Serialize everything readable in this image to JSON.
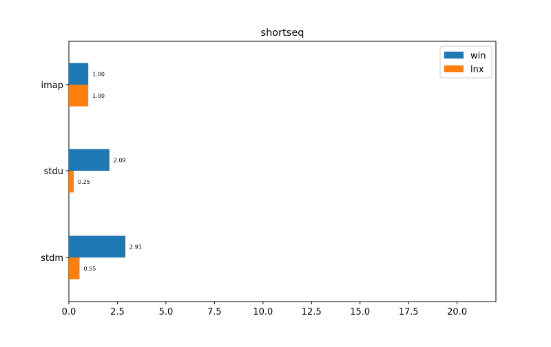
{
  "chart_data": {
    "type": "bar",
    "orientation": "horizontal",
    "title": "shortseq",
    "xlabel": "",
    "ylabel": "",
    "categories": [
      "imap",
      "stdu",
      "stdm"
    ],
    "series": [
      {
        "name": "win",
        "color": "#1f77b4",
        "values": [
          1.0,
          2.09,
          2.91
        ],
        "labels": [
          "1.00",
          "2.09",
          "2.91"
        ]
      },
      {
        "name": "lnx",
        "color": "#ff7f0e",
        "values": [
          1.0,
          0.25,
          0.55
        ],
        "labels": [
          "1.00",
          "0.25",
          "0.55"
        ]
      }
    ],
    "xlim": [
      0,
      22
    ],
    "xticks": [
      0,
      2.5,
      5,
      7.5,
      10,
      12.5,
      15,
      17.5,
      20
    ],
    "xtick_labels": [
      "0.0",
      "2.5",
      "5.0",
      "7.5",
      "10.0",
      "12.5",
      "15.0",
      "17.5",
      "20.0"
    ],
    "grid": false,
    "legend": {
      "placement": "top-right",
      "entries": [
        "win",
        "lnx"
      ]
    }
  }
}
